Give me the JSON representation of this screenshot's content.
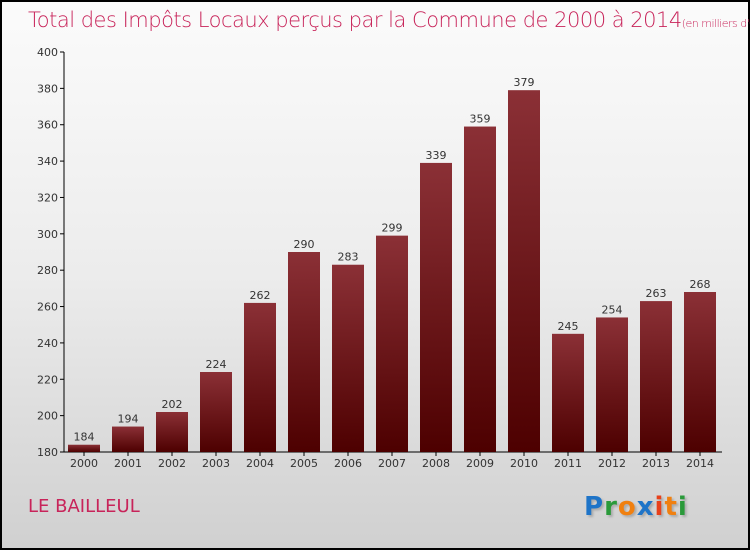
{
  "title": "Total des Impôts Locaux perçus par la Commune de 2000 à 2014",
  "unit": "(en milliers d'€)",
  "commune": "LE BAILLEUL",
  "logo": {
    "letters": [
      "P",
      "r",
      "o",
      "x",
      "i",
      "t",
      "i"
    ],
    "colors": [
      "#1e74c8",
      "#2a9a3a",
      "#f08010",
      "#1e74c8",
      "#e8401a",
      "#f08010",
      "#2a9a3a"
    ]
  },
  "chart_data": {
    "type": "bar",
    "title": "Total des Impôts Locaux perçus par la Commune de 2000 à 2014",
    "xlabel": "",
    "ylabel": "",
    "categories": [
      "2000",
      "2001",
      "2002",
      "2003",
      "2004",
      "2005",
      "2006",
      "2007",
      "2008",
      "2009",
      "2010",
      "2011",
      "2012",
      "2013",
      "2014"
    ],
    "values": [
      184,
      194,
      202,
      224,
      262,
      290,
      283,
      299,
      339,
      359,
      379,
      245,
      254,
      263,
      268
    ],
    "ylim": [
      180,
      400
    ],
    "yticks": [
      180,
      200,
      220,
      240,
      260,
      280,
      300,
      320,
      340,
      360,
      380,
      400
    ],
    "bar_color_top": "#8b3036",
    "bar_color_bottom": "#4d0000"
  }
}
